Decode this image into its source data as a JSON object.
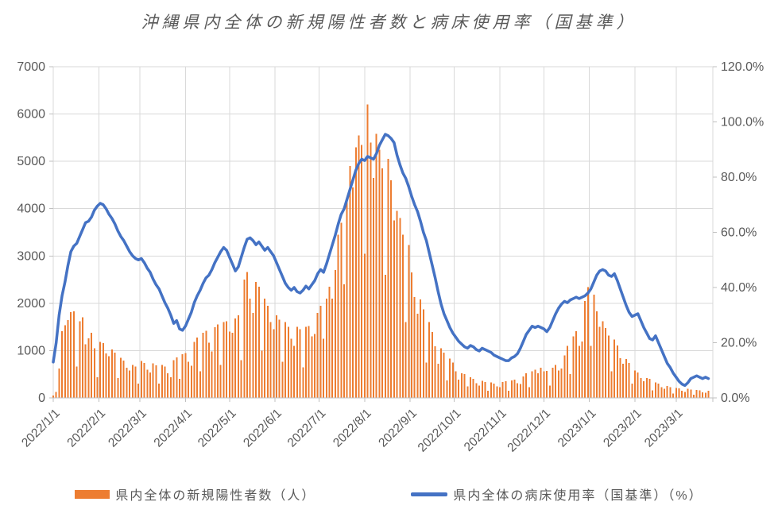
{
  "chart_data": {
    "type": "bar+line combo",
    "title": "沖縄県内全体の新規陽性者数と病床使用率（国基準）",
    "x_start_date": "2022/1/1",
    "x_step_days": 2,
    "x_tick_labels": [
      "2022/1/1",
      "2022/2/1",
      "2022/3/1",
      "2022/4/1",
      "2022/5/1",
      "2022/6/1",
      "2022/7/1",
      "2022/8/1",
      "2022/9/1",
      "2022/10/1",
      "2022/11/1",
      "2022/12/1",
      "2023/1/1",
      "2023/2/1",
      "2023/3/1"
    ],
    "left_axis": {
      "min": 0,
      "max": 7000,
      "step": 1000,
      "tick_labels": [
        "0",
        "1000",
        "2000",
        "3000",
        "4000",
        "5000",
        "6000",
        "7000"
      ]
    },
    "right_axis": {
      "min": 0,
      "max": 120,
      "step": 20,
      "tick_labels": [
        "0.0%",
        "20.0%",
        "40.0%",
        "60.0%",
        "80.0%",
        "100.0%",
        "120.0%"
      ]
    },
    "grid": true,
    "legend_position": "bottom",
    "series": [
      {
        "name": "県内全体の新規陽性者数（人）",
        "type": "bar",
        "axis": "left",
        "color": "#ED7D31",
        "values": [
          52,
          130,
          623,
          1414,
          1533,
          1644,
          1817,
          1829,
          660,
          1621,
          1701,
          1134,
          1256,
          1379,
          1050,
          434,
          1180,
          1160,
          940,
          880,
          1020,
          960,
          420,
          850,
          790,
          640,
          580,
          700,
          660,
          300,
          780,
          740,
          600,
          540,
          730,
          690,
          300,
          700,
          660,
          520,
          440,
          800,
          860,
          400,
          920,
          950,
          760,
          680,
          1180,
          1280,
          560,
          1380,
          1420,
          1170,
          980,
          1490,
          1550,
          700,
          1600,
          1620,
          1400,
          1380,
          1680,
          1750,
          800,
          2500,
          2660,
          2100,
          1800,
          2450,
          2350,
          1000,
          2100,
          1950,
          1600,
          1450,
          1750,
          1650,
          760,
          1600,
          1500,
          1250,
          1100,
          1500,
          1450,
          650,
          1500,
          1520,
          1300,
          1350,
          1800,
          1950,
          1250,
          2100,
          2350,
          2100,
          2700,
          3450,
          3700,
          2400,
          4200,
          4900,
          4450,
          5300,
          5550,
          5350,
          3050,
          6200,
          5400,
          4650,
          5580,
          5250,
          4850,
          2600,
          5050,
          4600,
          3750,
          3950,
          3800,
          3450,
          1600,
          3230,
          2650,
          2130,
          1780,
          2080,
          1870,
          750,
          1600,
          1390,
          1090,
          720,
          1050,
          960,
          370,
          830,
          750,
          560,
          390,
          520,
          500,
          240,
          440,
          400,
          310,
          260,
          360,
          340,
          150,
          330,
          300,
          240,
          230,
          340,
          350,
          150,
          370,
          390,
          310,
          290,
          450,
          520,
          230,
          560,
          600,
          520,
          640,
          560,
          570,
          260,
          640,
          700,
          580,
          620,
          900,
          1100,
          500,
          1300,
          1410,
          1100,
          1190,
          2050,
          2340,
          1100,
          2180,
          1830,
          1500,
          1620,
          1480,
          1320,
          560,
          1230,
          1110,
          840,
          720,
          820,
          740,
          300,
          580,
          540,
          420,
          350,
          420,
          400,
          160,
          330,
          300,
          230,
          190,
          250,
          230,
          90,
          210,
          200,
          150,
          130,
          190,
          180,
          70,
          170,
          160,
          120,
          110,
          150
        ]
      },
      {
        "name": "県内全体の病床使用率（国基準）（%）",
        "type": "line",
        "axis": "right",
        "color": "#4472C4",
        "values": [
          13,
          20,
          30,
          37,
          42,
          48,
          53,
          55,
          56,
          58.5,
          61,
          63.5,
          64,
          65.5,
          68,
          69.5,
          70.5,
          70,
          68.5,
          66.5,
          65,
          63,
          60.5,
          58.5,
          57,
          55,
          53,
          51.5,
          50.5,
          50,
          50.5,
          49,
          47,
          45.5,
          43,
          41,
          39.5,
          37,
          34.5,
          32.5,
          30,
          27,
          28,
          25,
          24.5,
          26,
          28.5,
          31,
          34.5,
          37,
          39,
          41.5,
          43.5,
          44.5,
          46.5,
          49,
          51,
          53,
          54.5,
          53.5,
          51,
          48.5,
          46,
          47.5,
          51,
          54.5,
          57.5,
          58,
          57,
          55.5,
          56.5,
          55,
          53.5,
          54.5,
          53,
          51.5,
          49,
          46.5,
          44,
          41.5,
          40,
          39,
          40,
          38.5,
          38,
          39,
          40.5,
          39.5,
          41,
          42.5,
          45,
          46.5,
          45.5,
          48.5,
          52,
          55.5,
          59,
          63,
          66.5,
          68.5,
          72,
          75.5,
          79,
          82.5,
          85,
          86.5,
          86,
          87.5,
          87,
          86.5,
          88.5,
          91.5,
          93.5,
          95.5,
          95,
          94,
          92.5,
          88,
          84.5,
          81.5,
          79.5,
          76.5,
          73,
          70,
          67.5,
          64,
          60,
          57,
          52.5,
          48,
          43.5,
          38.5,
          34,
          30.5,
          28,
          25.5,
          23.5,
          22,
          20.5,
          19.5,
          18.5,
          18,
          19,
          18.5,
          17.5,
          17,
          18,
          17.5,
          17,
          16.5,
          15.5,
          15,
          14.5,
          14,
          13.5,
          13.5,
          14.5,
          15,
          16,
          18,
          20.5,
          23,
          24.5,
          26,
          25.5,
          26,
          25.5,
          25,
          24,
          25.5,
          28,
          30.5,
          32.5,
          34,
          35,
          34.5,
          35.5,
          36,
          36.5,
          36,
          36.5,
          37,
          38,
          39.5,
          42,
          44.5,
          46,
          46.5,
          46,
          44.5,
          44,
          45,
          42.5,
          39.5,
          36.5,
          33.5,
          31,
          29.5,
          30,
          30.5,
          28,
          25.5,
          23.5,
          21.5,
          21,
          22.5,
          20,
          17.5,
          15,
          12.5,
          11,
          9,
          7.5,
          6,
          5,
          4.5,
          5.5,
          7,
          7.5,
          8,
          7.5,
          7,
          7.5,
          7
        ]
      }
    ]
  },
  "legend": {
    "cases_label": "県内全体の新規陽性者数（人）",
    "rate_label": "県内全体の病床使用率（国基準）（%）"
  },
  "colors": {
    "bar": "#ED7D31",
    "line": "#4472C4",
    "gridline": "#D9D9D9",
    "axis_line": "#BFBFBF",
    "text": "#595959"
  }
}
